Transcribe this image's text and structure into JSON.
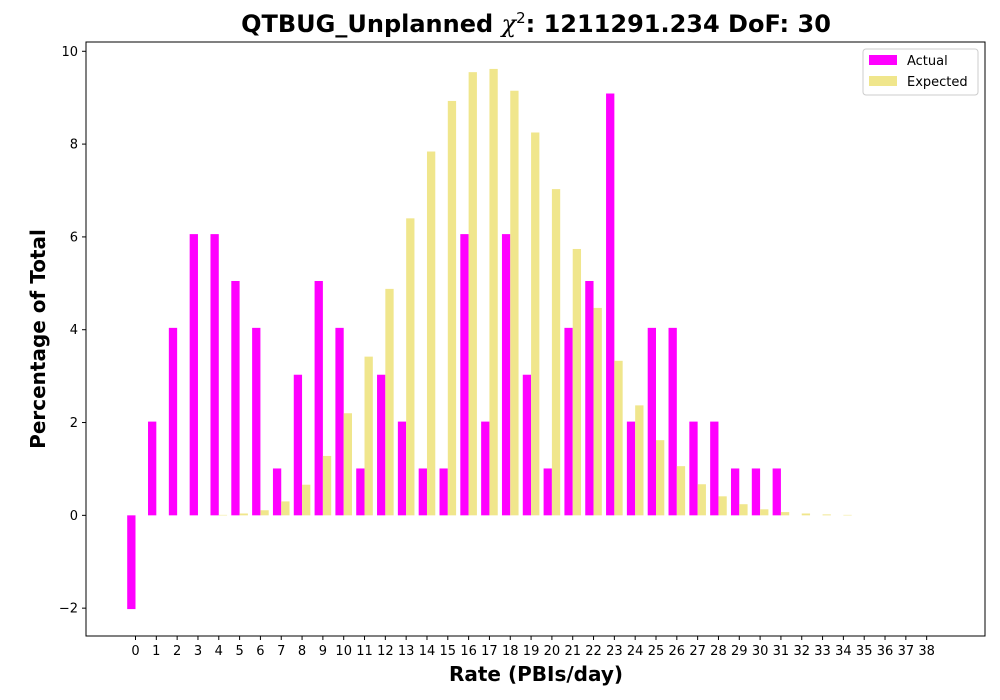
{
  "chart_data": {
    "type": "bar",
    "title": {
      "prefix": "QTBUG_Unplanned ",
      "chi": "χ",
      "sup": "2",
      "suffix": ": 1211291.234 DoF: 30"
    },
    "xlabel": "Rate (PBIs/day)",
    "ylabel": "Percentage of Total",
    "categories": [
      "0",
      "1",
      "2",
      "3",
      "4",
      "5",
      "6",
      "7",
      "8",
      "9",
      "10",
      "11",
      "12",
      "13",
      "14",
      "15",
      "16",
      "17",
      "18",
      "19",
      "20",
      "21",
      "22",
      "23",
      "24",
      "25",
      "26",
      "27",
      "28",
      "29",
      "30",
      "31",
      "32",
      "33",
      "34",
      "35",
      "36",
      "37",
      "38"
    ],
    "ylim": [
      -2.6,
      10.2
    ],
    "yticks": [
      -2,
      0,
      2,
      4,
      6,
      8,
      10
    ],
    "ytick_labels": [
      "−2",
      "0",
      "2",
      "4",
      "6",
      "8",
      "10"
    ],
    "series": [
      {
        "name": "Actual",
        "color": "#ff00ff",
        "values": [
          -2.02,
          2.02,
          4.04,
          6.06,
          6.06,
          5.05,
          4.04,
          1.01,
          3.03,
          5.05,
          4.04,
          1.01,
          3.03,
          2.02,
          1.01,
          1.01,
          6.06,
          2.02,
          6.06,
          3.03,
          1.01,
          4.04,
          5.05,
          9.09,
          2.02,
          4.04,
          4.04,
          2.02,
          2.02,
          1.01,
          1.01,
          1.01,
          0,
          0,
          0,
          0,
          0,
          0,
          0
        ]
      },
      {
        "name": "Expected",
        "color": "#f0e68c",
        "values": [
          0.0,
          0.0,
          0.0,
          0.0,
          0.01,
          0.04,
          0.11,
          0.3,
          0.66,
          1.28,
          2.2,
          3.42,
          4.88,
          6.4,
          7.84,
          8.93,
          9.55,
          9.62,
          9.15,
          8.25,
          7.03,
          5.74,
          4.47,
          3.33,
          2.37,
          1.62,
          1.06,
          0.67,
          0.41,
          0.24,
          0.13,
          0.07,
          0.04,
          0.02,
          0.01,
          0.0,
          0.0,
          0.0,
          0.0
        ]
      }
    ],
    "legend": {
      "position": "top-right"
    },
    "grid": false
  }
}
